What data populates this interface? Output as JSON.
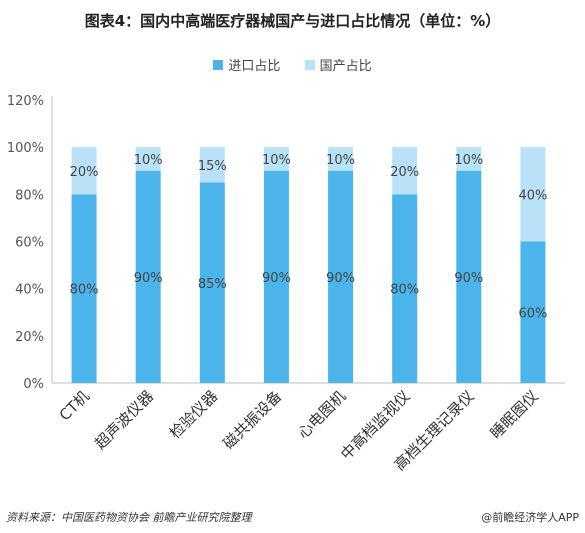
{
  "title": "图表4：国内中高端医疗器械国产与进口占比情况（单位：%）",
  "footer": {
    "source": "资料来源：中国医药物资协会 前瞻产业研究院整理",
    "brand": "@前瞻经济学人APP"
  },
  "colors": {
    "import": "#4bb4ea",
    "domestic": "#b9e2f8"
  },
  "chart_data": {
    "type": "bar",
    "stacked": true,
    "percent": true,
    "categories": [
      "CT机",
      "超声波仪器",
      "检验仪器",
      "磁共振设备",
      "心电图机",
      "中高档监视仪",
      "高档生理记录仪",
      "睡眠图仪"
    ],
    "series": [
      {
        "name": "进口占比",
        "values": [
          80,
          90,
          85,
          90,
          90,
          80,
          90,
          60
        ],
        "labels": [
          "80%",
          "90%",
          "85%",
          "90%",
          "90%",
          "80%",
          "90%",
          "60%"
        ]
      },
      {
        "name": "国产占比",
        "values": [
          20,
          10,
          15,
          10,
          10,
          20,
          10,
          40
        ],
        "labels": [
          "20%",
          "10%",
          "15%",
          "10%",
          "10%",
          "20%",
          "10%",
          "40%"
        ]
      }
    ],
    "yticks": [
      "0%",
      "20%",
      "40%",
      "60%",
      "80%",
      "100%",
      "120%"
    ],
    "ylim": [
      0,
      120
    ],
    "legend_position": "top",
    "grid": false
  }
}
